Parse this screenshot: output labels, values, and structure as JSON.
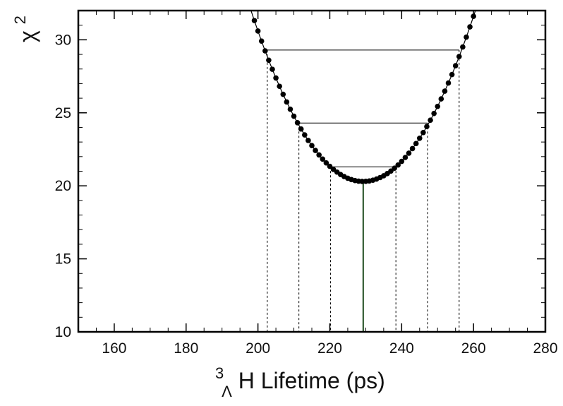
{
  "chart_data": {
    "type": "scatter",
    "title": "",
    "xlabel": {
      "sup": "3",
      "sub": "Λ",
      "main": "H Lifetime (ps)"
    },
    "ylabel": {
      "main": "χ",
      "sup": "2"
    },
    "xlim": [
      150,
      280
    ],
    "ylim": [
      10,
      32
    ],
    "xticks": [
      160,
      180,
      200,
      220,
      240,
      260,
      280
    ],
    "yticks": [
      10,
      15,
      20,
      25,
      30
    ],
    "grid": false,
    "fit": {
      "min_x": 229.3,
      "min_y": 20.3,
      "curvature": 0.012
    },
    "scan_range": [
      199,
      260
    ],
    "scan_step": 1,
    "sigma_levels": [
      {
        "delta_chi2": 1,
        "y": 21.3,
        "x_low": 220.2,
        "x_high": 238.4
      },
      {
        "delta_chi2": 4,
        "y": 24.3,
        "x_low": 211.4,
        "x_high": 247.2
      },
      {
        "delta_chi2": 9,
        "y": 29.3,
        "x_low": 202.6,
        "x_high": 256.0
      }
    ],
    "colors": {
      "points": "#000000",
      "curve": "#000000",
      "min_line": "#1f4d1f",
      "level_lines": "#000000"
    }
  }
}
